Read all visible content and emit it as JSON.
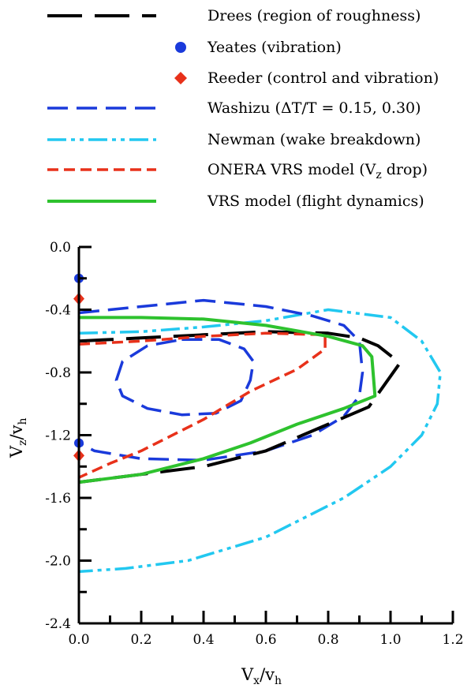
{
  "chart_data": {
    "type": "line",
    "xlabel": {
      "main": "V",
      "sub_1": "x",
      "slash": "/v",
      "sub_2": "h"
    },
    "ylabel": {
      "main": "V",
      "sub_1": "z",
      "slash": "/v",
      "sub_2": "h"
    },
    "xlim": [
      0.0,
      1.2
    ],
    "ylim": [
      -2.4,
      0.0
    ],
    "x_ticks": [
      0.0,
      0.2,
      0.4,
      0.6,
      0.8,
      1.0,
      1.2
    ],
    "x_tick_labels": [
      "0.0",
      "0.2",
      "0.4",
      "0.6",
      "0.8",
      "1.0",
      "1.2"
    ],
    "y_ticks": [
      0.0,
      -0.4,
      -0.8,
      -1.2,
      -1.6,
      -2.0,
      -2.4
    ],
    "y_tick_labels": [
      "0.0",
      "-0.4",
      "-0.8",
      "-1.2",
      "-1.6",
      "-2.0",
      "-2.4"
    ],
    "grid": false,
    "legend_position": "top",
    "legend": [
      {
        "key": "drees",
        "label": "Drees (region of roughness)",
        "symbol": "line",
        "color": "#000000"
      },
      {
        "key": "yeates",
        "label": "Yeates (vibration)",
        "symbol": "circle",
        "color": "#1a3adb"
      },
      {
        "key": "reeder",
        "label": "Reeder (control and vibration)",
        "symbol": "diamond",
        "color": "#e8311a"
      },
      {
        "key": "washizu",
        "label": "Washizu (ΔT/T = 0.15, 0.30)",
        "symbol": "line",
        "color": "#1a3adb"
      },
      {
        "key": "newman",
        "label": "Newman (wake breakdown)",
        "symbol": "line",
        "color": "#22c8f0"
      },
      {
        "key": "onera",
        "label_main": "ONERA VRS model (V",
        "label_sub": "z",
        "label_end": " drop)",
        "symbol": "line",
        "color": "#e8311a"
      },
      {
        "key": "vrs",
        "label": "VRS model (flight dynamics)",
        "symbol": "line",
        "color": "#2ec22e"
      }
    ],
    "series": [
      {
        "key": "drees",
        "name": "Drees (region of roughness)",
        "color": "#000000",
        "points": [
          [
            0.0,
            -0.6
          ],
          [
            0.2,
            -0.58
          ],
          [
            0.4,
            -0.56
          ],
          [
            0.6,
            -0.54
          ],
          [
            0.8,
            -0.55
          ],
          [
            0.9,
            -0.58
          ],
          [
            0.96,
            -0.63
          ],
          [
            1.03,
            -0.74
          ],
          [
            0.93,
            -1.02
          ],
          [
            0.8,
            -1.13
          ],
          [
            0.6,
            -1.3
          ],
          [
            0.4,
            -1.4
          ],
          [
            0.2,
            -1.45
          ],
          [
            0.0,
            -1.5
          ]
        ]
      },
      {
        "key": "washizu_inner",
        "name": "Washizu (ΔT/T = 0.15, 0.30)",
        "color": "#1a3adb",
        "points": [
          [
            0.33,
            -0.59
          ],
          [
            0.45,
            -0.59
          ],
          [
            0.53,
            -0.65
          ],
          [
            0.56,
            -0.73
          ],
          [
            0.55,
            -0.85
          ],
          [
            0.52,
            -0.98
          ],
          [
            0.44,
            -1.06
          ],
          [
            0.33,
            -1.07
          ],
          [
            0.22,
            -1.03
          ],
          [
            0.14,
            -0.95
          ],
          [
            0.12,
            -0.85
          ],
          [
            0.14,
            -0.73
          ],
          [
            0.22,
            -0.63
          ],
          [
            0.33,
            -0.59
          ]
        ]
      },
      {
        "key": "washizu_outer",
        "name": "Washizu (ΔT/T = 0.15, 0.30)",
        "color": "#1a3adb",
        "points": [
          [
            0.0,
            -0.42
          ],
          [
            0.2,
            -0.38
          ],
          [
            0.4,
            -0.34
          ],
          [
            0.6,
            -0.38
          ],
          [
            0.75,
            -0.44
          ],
          [
            0.85,
            -0.5
          ],
          [
            0.9,
            -0.6
          ],
          [
            0.91,
            -0.8
          ],
          [
            0.9,
            -0.95
          ],
          [
            0.85,
            -1.08
          ],
          [
            0.75,
            -1.2
          ],
          [
            0.6,
            -1.3
          ],
          [
            0.4,
            -1.36
          ],
          [
            0.2,
            -1.35
          ],
          [
            0.05,
            -1.3
          ],
          [
            0.0,
            -1.25
          ]
        ]
      },
      {
        "key": "newman",
        "name": "Newman (wake breakdown)",
        "color": "#22c8f0",
        "points": [
          [
            0.0,
            -0.55
          ],
          [
            0.2,
            -0.54
          ],
          [
            0.4,
            -0.51
          ],
          [
            0.6,
            -0.47
          ],
          [
            0.8,
            -0.4
          ],
          [
            1.0,
            -0.45
          ],
          [
            1.1,
            -0.6
          ],
          [
            1.16,
            -0.8
          ],
          [
            1.15,
            -1.0
          ],
          [
            1.1,
            -1.2
          ],
          [
            1.0,
            -1.4
          ],
          [
            0.85,
            -1.6
          ],
          [
            0.6,
            -1.85
          ],
          [
            0.35,
            -2.0
          ],
          [
            0.15,
            -2.05
          ],
          [
            0.0,
            -2.07
          ]
        ]
      },
      {
        "key": "onera",
        "name": "ONERA VRS model (V_z drop)",
        "color": "#e8311a",
        "points": [
          [
            0.0,
            -0.62
          ],
          [
            0.2,
            -0.6
          ],
          [
            0.4,
            -0.57
          ],
          [
            0.6,
            -0.55
          ],
          [
            0.79,
            -0.56
          ],
          [
            0.79,
            -0.65
          ],
          [
            0.7,
            -0.78
          ],
          [
            0.55,
            -0.92
          ],
          [
            0.4,
            -1.1
          ],
          [
            0.2,
            -1.3
          ],
          [
            0.1,
            -1.38
          ],
          [
            0.0,
            -1.47
          ]
        ]
      },
      {
        "key": "vrs",
        "name": "VRS model (flight dynamics)",
        "color": "#2ec22e",
        "points": [
          [
            0.0,
            -0.45
          ],
          [
            0.2,
            -0.45
          ],
          [
            0.4,
            -0.46
          ],
          [
            0.6,
            -0.5
          ],
          [
            0.8,
            -0.57
          ],
          [
            0.91,
            -0.63
          ],
          [
            0.94,
            -0.7
          ],
          [
            0.95,
            -0.95
          ],
          [
            0.85,
            -1.03
          ],
          [
            0.7,
            -1.13
          ],
          [
            0.55,
            -1.25
          ],
          [
            0.4,
            -1.35
          ],
          [
            0.2,
            -1.45
          ],
          [
            0.0,
            -1.5
          ]
        ]
      }
    ],
    "markers": [
      {
        "key": "yeates",
        "name": "Yeates (vibration)",
        "shape": "circle",
        "color": "#1a3adb",
        "points": [
          [
            0.0,
            -0.2
          ],
          [
            0.0,
            -1.25
          ]
        ]
      },
      {
        "key": "reeder",
        "name": "Reeder (control and vibration)",
        "shape": "diamond",
        "color": "#e8311a",
        "points": [
          [
            0.0,
            -0.33
          ],
          [
            0.0,
            -1.33
          ]
        ]
      }
    ]
  }
}
